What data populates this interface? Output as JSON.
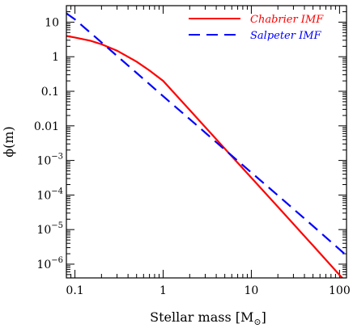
{
  "chart_data": {
    "type": "line",
    "xlabel": "Stellar mass [M",
    "xlabel_sub": "⊙",
    "xlabel_close": "]",
    "ylabel": "ϕ(m)",
    "xscale": "log",
    "yscale": "log",
    "xlim": [
      0.08,
      120
    ],
    "ylim": [
      4e-07,
      30
    ],
    "grid": false,
    "legend_position": "top-right",
    "x_ticks": [
      {
        "value": 0.1,
        "label": "0.1"
      },
      {
        "value": 1,
        "label": "1"
      },
      {
        "value": 10,
        "label": "10"
      },
      {
        "value": 100,
        "label": "100"
      }
    ],
    "y_ticks": [
      {
        "value": 10,
        "label": "10",
        "exp": ""
      },
      {
        "value": 1,
        "label": "1",
        "exp": ""
      },
      {
        "value": 0.1,
        "label": "0.1",
        "exp": ""
      },
      {
        "value": 0.01,
        "label": "0.01",
        "exp": ""
      },
      {
        "value": 0.001,
        "label": "10",
        "exp": "−3"
      },
      {
        "value": 0.0001,
        "label": "10",
        "exp": "−4"
      },
      {
        "value": 1e-05,
        "label": "10",
        "exp": "−5"
      },
      {
        "value": 1e-06,
        "label": "10",
        "exp": "−6"
      }
    ],
    "series": [
      {
        "name": "Chabrier IMF",
        "color": "#ff0000",
        "dash": "solid",
        "x": [
          0.08,
          0.1,
          0.15,
          0.2,
          0.3,
          0.5,
          0.7,
          1,
          2,
          5,
          10,
          20,
          50,
          120
        ],
        "y": [
          4.0,
          3.6,
          2.9,
          2.3,
          1.5,
          0.72,
          0.4,
          0.2,
          0.0288,
          0.00219,
          0.000316,
          4.55e-05,
          3.46e-06,
          2.9e-07
        ]
      },
      {
        "name": "Salpeter IMF",
        "color": "#0000ff",
        "dash": "dashed",
        "x": [
          0.08,
          0.1,
          0.2,
          0.5,
          1,
          2,
          5,
          10,
          20,
          50,
          120
        ],
        "y": [
          18.0,
          12.0,
          2.6,
          0.34,
          0.072,
          0.0157,
          0.00205,
          0.000447,
          9.75e-05,
          1.27e-05,
          1.77e-06
        ]
      }
    ]
  }
}
